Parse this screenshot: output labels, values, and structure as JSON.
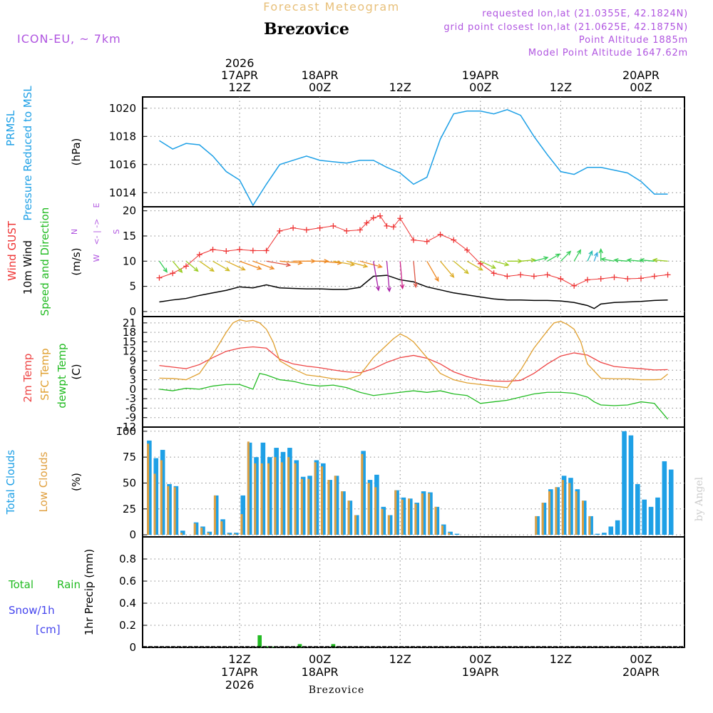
{
  "header": {
    "app_title": "Forecast Meteogram",
    "location": "Brezovice",
    "model": "ICON-EU, ~ 7km",
    "requested": "requested lon,lat (21.0355E, 42.1824N)",
    "grid_point": "grid point closest lon,lat (21.0625E, 42.1875N)",
    "point_altitude": "Point Altitude 1885m",
    "model_altitude": "Model Point Altitude 1647.62m",
    "footer_location": "Brezovice",
    "watermark": "by Angel"
  },
  "colors": {
    "pressure": "#1ea0e6",
    "gust": "#ee3333",
    "wind_speed": "#000000",
    "wind_label": "#22bb22",
    "temp2m": "#ee4444",
    "sfc_temp": "#e0a030",
    "dewpt": "#22bb22",
    "total_clouds": "#1ea0e6",
    "low_clouds": "#e0a040",
    "rain": "#22bb22",
    "snow": "#4444ee",
    "title_purple": "#b055e0",
    "title_orange": "#e8c07a",
    "compass": "#b055e0"
  },
  "time_axis": {
    "top_labels": [
      {
        "t": 12,
        "lines": [
          "2026",
          "17APR",
          "12Z"
        ]
      },
      {
        "t": 24,
        "lines": [
          "18APR",
          "00Z"
        ]
      },
      {
        "t": 36,
        "lines": [
          "12Z"
        ]
      },
      {
        "t": 48,
        "lines": [
          "19APR",
          "00Z"
        ]
      },
      {
        "t": 60,
        "lines": [
          "12Z"
        ]
      },
      {
        "t": 72,
        "lines": [
          "20APR",
          "00Z"
        ]
      }
    ],
    "bottom_labels": [
      {
        "t": 12,
        "lines": [
          "12Z",
          "17APR",
          "2026"
        ]
      },
      {
        "t": 24,
        "lines": [
          "00Z",
          "18APR"
        ]
      },
      {
        "t": 36,
        "lines": [
          "12Z"
        ]
      },
      {
        "t": 48,
        "lines": [
          "00Z",
          "19APR"
        ]
      },
      {
        "t": 60,
        "lines": [
          "12Z"
        ]
      },
      {
        "t": 72,
        "lines": [
          "00Z",
          "20APR"
        ]
      }
    ]
  },
  "chart_data": [
    {
      "type": "line",
      "title": "PRMSL Pressure Reduced to MSL",
      "ylabel": "(hPa)",
      "side_labels": [
        "PRMSL",
        "Pressure Reduced to MSL"
      ],
      "ylim": [
        1013,
        1020.8
      ],
      "yticks": [
        1014,
        1016,
        1018,
        1020
      ],
      "series": [
        {
          "name": "PRMSL",
          "x": [
            0,
            2,
            4,
            6,
            8,
            10,
            12,
            14,
            16,
            18,
            20,
            22,
            24,
            26,
            28,
            30,
            32,
            34,
            36,
            38,
            40,
            42,
            44,
            46,
            48,
            50,
            52,
            54,
            56,
            58,
            60,
            62,
            64,
            66,
            68,
            70,
            72,
            74,
            76
          ],
          "values": [
            1017.7,
            1017.1,
            1017.5,
            1017.4,
            1016.6,
            1015.5,
            1014.9,
            1013.1,
            1014.6,
            1016.0,
            1016.3,
            1016.6,
            1016.3,
            1016.2,
            1016.1,
            1016.3,
            1016.3,
            1015.8,
            1015.4,
            1014.6,
            1015.1,
            1017.8,
            1019.6,
            1019.8,
            1019.8,
            1019.6,
            1019.9,
            1019.5,
            1018.0,
            1016.7,
            1015.5,
            1015.3,
            1015.8,
            1015.8,
            1015.6,
            1015.4,
            1014.8,
            1013.9,
            1013.9
          ]
        }
      ]
    },
    {
      "type": "line",
      "title": "Wind GUST, 10m Wind Speed and Direction",
      "ylabel": "(m/s)",
      "side_labels": [
        "Wind GUST",
        "10m Wind",
        "Speed and Direction"
      ],
      "compass": [
        "N",
        "W",
        "<- | ->",
        "E",
        "S"
      ],
      "ylim": [
        -1,
        20.8
      ],
      "yticks": [
        0,
        5,
        10,
        15,
        20
      ],
      "series": [
        {
          "name": "Wind GUST",
          "x": [
            0,
            2,
            4,
            6,
            8,
            10,
            12,
            14,
            16,
            18,
            20,
            22,
            24,
            26,
            28,
            30,
            31,
            32,
            33,
            34,
            35,
            36,
            38,
            40,
            42,
            44,
            46,
            48,
            50,
            52,
            54,
            56,
            58,
            60,
            62,
            64,
            66,
            68,
            70,
            72,
            74,
            76
          ],
          "values": [
            6.7,
            7.6,
            9.0,
            11.3,
            12.3,
            12.0,
            12.3,
            12.1,
            12.1,
            16.0,
            16.6,
            16.2,
            16.6,
            17.0,
            16.0,
            16.2,
            17.6,
            18.6,
            19.0,
            17.0,
            16.8,
            18.5,
            14.2,
            13.9,
            15.3,
            14.2,
            12.2,
            9.5,
            7.6,
            7.0,
            7.3,
            7.0,
            7.3,
            6.5,
            5.1,
            6.3,
            6.5,
            6.8,
            6.5,
            6.6,
            7.0,
            7.3
          ]
        },
        {
          "name": "10m Wind Speed",
          "x": [
            0,
            2,
            4,
            6,
            8,
            10,
            12,
            14,
            16,
            18,
            20,
            22,
            24,
            26,
            28,
            30,
            32,
            34,
            36,
            38,
            40,
            42,
            44,
            46,
            48,
            50,
            52,
            54,
            56,
            58,
            60,
            62,
            64,
            65,
            66,
            68,
            70,
            72,
            74,
            76
          ],
          "values": [
            1.9,
            2.3,
            2.6,
            3.2,
            3.7,
            4.2,
            4.9,
            4.7,
            5.3,
            4.7,
            4.6,
            4.5,
            4.5,
            4.4,
            4.4,
            4.8,
            7.0,
            7.2,
            6.3,
            5.9,
            4.9,
            4.3,
            3.7,
            3.3,
            2.9,
            2.5,
            2.3,
            2.3,
            2.2,
            2.2,
            2.1,
            1.8,
            1.2,
            0.6,
            1.5,
            1.8,
            1.9,
            2.0,
            2.2,
            2.3
          ]
        }
      ],
      "direction_deg": [
        325,
        320,
        310,
        305,
        300,
        295,
        290,
        290,
        280,
        275,
        270,
        270,
        275,
        280,
        285,
        285,
        350,
        355,
        355,
        355,
        330,
        320,
        310,
        300,
        295,
        285,
        270,
        265,
        255,
        240,
        225,
        210,
        205,
        200,
        180,
        100,
        95,
        95,
        95,
        95
      ]
    },
    {
      "type": "line",
      "title": "Temperatures",
      "ylabel": "(C)",
      "side_labels": [
        "2m Temp",
        "SFC Temp",
        "dewpt Temp"
      ],
      "ylim": [
        -12,
        23
      ],
      "yticks": [
        -12,
        -9,
        -6,
        -3,
        0,
        3,
        6,
        9,
        12,
        15,
        18,
        21
      ],
      "ytick_labels": [
        "-12",
        "-9",
        "-6",
        "-3",
        "0",
        "3",
        "6",
        "9",
        "12",
        "15",
        "18",
        "21"
      ],
      "series": [
        {
          "name": "2m Temp",
          "x": [
            0,
            2,
            4,
            6,
            8,
            10,
            12,
            14,
            16,
            18,
            20,
            22,
            24,
            26,
            28,
            30,
            32,
            34,
            36,
            38,
            40,
            42,
            44,
            46,
            48,
            50,
            52,
            54,
            56,
            58,
            60,
            62,
            64,
            66,
            68,
            70,
            72,
            74,
            76
          ],
          "values": [
            7.5,
            7.0,
            6.5,
            7.8,
            10.0,
            12.0,
            13.0,
            13.4,
            13.0,
            9.5,
            8.0,
            7.3,
            6.8,
            6.1,
            5.5,
            5.2,
            6.5,
            8.5,
            10.0,
            10.7,
            9.8,
            8.0,
            5.5,
            4.0,
            3.0,
            2.6,
            2.5,
            2.8,
            5.0,
            8.0,
            10.5,
            11.5,
            10.8,
            8.5,
            7.2,
            6.8,
            6.5,
            6.1,
            6.2
          ]
        },
        {
          "name": "SFC Temp",
          "x": [
            0,
            2,
            4,
            6,
            8,
            10,
            11,
            12,
            13,
            14,
            15,
            16,
            17,
            18,
            20,
            22,
            24,
            26,
            28,
            30,
            32,
            34,
            35,
            36,
            37,
            38,
            40,
            42,
            44,
            46,
            48,
            50,
            52,
            54,
            56,
            58,
            59,
            60,
            61,
            62,
            63,
            64,
            66,
            68,
            70,
            72,
            74,
            75,
            76
          ],
          "values": [
            3.5,
            3.4,
            3.0,
            5.0,
            11.0,
            18.0,
            21.0,
            22.0,
            21.5,
            21.8,
            21.0,
            19.0,
            15.0,
            9.0,
            6.5,
            4.5,
            4.0,
            3.3,
            3.0,
            4.5,
            10.0,
            14.0,
            16.0,
            17.5,
            16.5,
            15.0,
            10.0,
            5.0,
            3.0,
            2.0,
            1.5,
            1.0,
            0.5,
            6.0,
            13.0,
            18.5,
            21.0,
            21.5,
            20.5,
            19.0,
            15.0,
            8.0,
            3.5,
            3.3,
            3.3,
            3.0,
            3.0,
            3.1,
            4.8
          ]
        },
        {
          "name": "dewpt Temp",
          "x": [
            0,
            2,
            4,
            6,
            8,
            10,
            12,
            14,
            15,
            16,
            18,
            20,
            22,
            24,
            26,
            28,
            30,
            32,
            34,
            36,
            38,
            40,
            42,
            44,
            46,
            48,
            50,
            52,
            54,
            56,
            58,
            60,
            62,
            64,
            65,
            66,
            68,
            70,
            72,
            74,
            75,
            76
          ],
          "values": [
            0.0,
            -0.5,
            0.3,
            0.0,
            1.0,
            1.5,
            1.5,
            0.0,
            5.0,
            4.5,
            3.0,
            2.5,
            1.5,
            1.0,
            1.3,
            0.5,
            -1.0,
            -2.0,
            -1.5,
            -1.0,
            -0.5,
            -1.0,
            -0.5,
            -1.5,
            -2.0,
            -4.5,
            -4.0,
            -3.5,
            -2.5,
            -1.5,
            -1.0,
            -1.0,
            -1.3,
            -2.5,
            -4.0,
            -5.0,
            -5.2,
            -5.0,
            -4.0,
            -4.5,
            -7.0,
            -9.5
          ]
        }
      ]
    },
    {
      "type": "bar",
      "title": "Clouds",
      "ylabel": "(%)",
      "side_labels": [
        "Total Clouds",
        "Low Clouds"
      ],
      "ylim": [
        -2,
        104
      ],
      "yticks": [
        0,
        25,
        50,
        75,
        100
      ],
      "series": [
        {
          "name": "Total Clouds",
          "values": [
            91,
            74,
            82,
            49,
            47,
            4,
            0,
            12,
            8,
            3,
            38,
            15,
            2,
            2,
            38,
            89,
            75,
            89,
            75,
            84,
            80,
            84,
            72,
            56,
            57,
            72,
            69,
            53,
            57,
            42,
            33,
            19,
            81,
            53,
            58,
            27,
            19,
            43,
            36,
            35,
            31,
            42,
            41,
            27,
            10,
            3,
            1,
            0,
            0,
            0,
            0,
            0,
            0,
            0,
            0,
            0,
            0,
            0,
            18,
            31,
            44,
            46,
            57,
            55,
            44,
            33,
            18,
            1,
            2,
            8,
            14,
            100,
            96,
            49,
            34,
            27,
            36,
            71,
            63
          ]
        },
        {
          "name": "Low Clouds",
          "values": [
            88,
            59,
            72,
            47,
            46,
            2,
            0,
            11,
            7,
            2,
            38,
            13,
            1,
            1,
            20,
            90,
            69,
            69,
            69,
            75,
            70,
            75,
            69,
            54,
            54,
            70,
            66,
            53,
            57,
            42,
            33,
            19,
            78,
            50,
            46,
            25,
            19,
            43,
            34,
            35,
            30,
            40,
            40,
            27,
            9,
            2,
            0,
            0,
            0,
            0,
            0,
            0,
            0,
            0,
            0,
            0,
            0,
            0,
            18,
            31,
            42,
            46,
            53,
            50,
            42,
            33,
            18,
            0,
            0,
            0,
            0,
            0,
            0,
            0,
            0,
            0,
            0,
            0,
            0
          ]
        }
      ]
    },
    {
      "type": "bar",
      "title": "1hr Precip",
      "ylabel": "1hr Precip (mm)",
      "side_labels": [
        "Total",
        "Rain",
        "Snow/1h",
        "[cm]"
      ],
      "ylim": [
        0,
        1.0
      ],
      "yticks": [
        0,
        0.2,
        0.4,
        0.6,
        0.8
      ],
      "ytick_labels": [
        "0",
        "0.2",
        "0.4",
        "0.6",
        "0.8"
      ],
      "series": [
        {
          "name": "Rain",
          "x": [
            15,
            16,
            17,
            21,
            26
          ],
          "values": [
            0.11,
            0.01,
            0.005,
            0.03,
            0.03
          ]
        }
      ]
    }
  ]
}
